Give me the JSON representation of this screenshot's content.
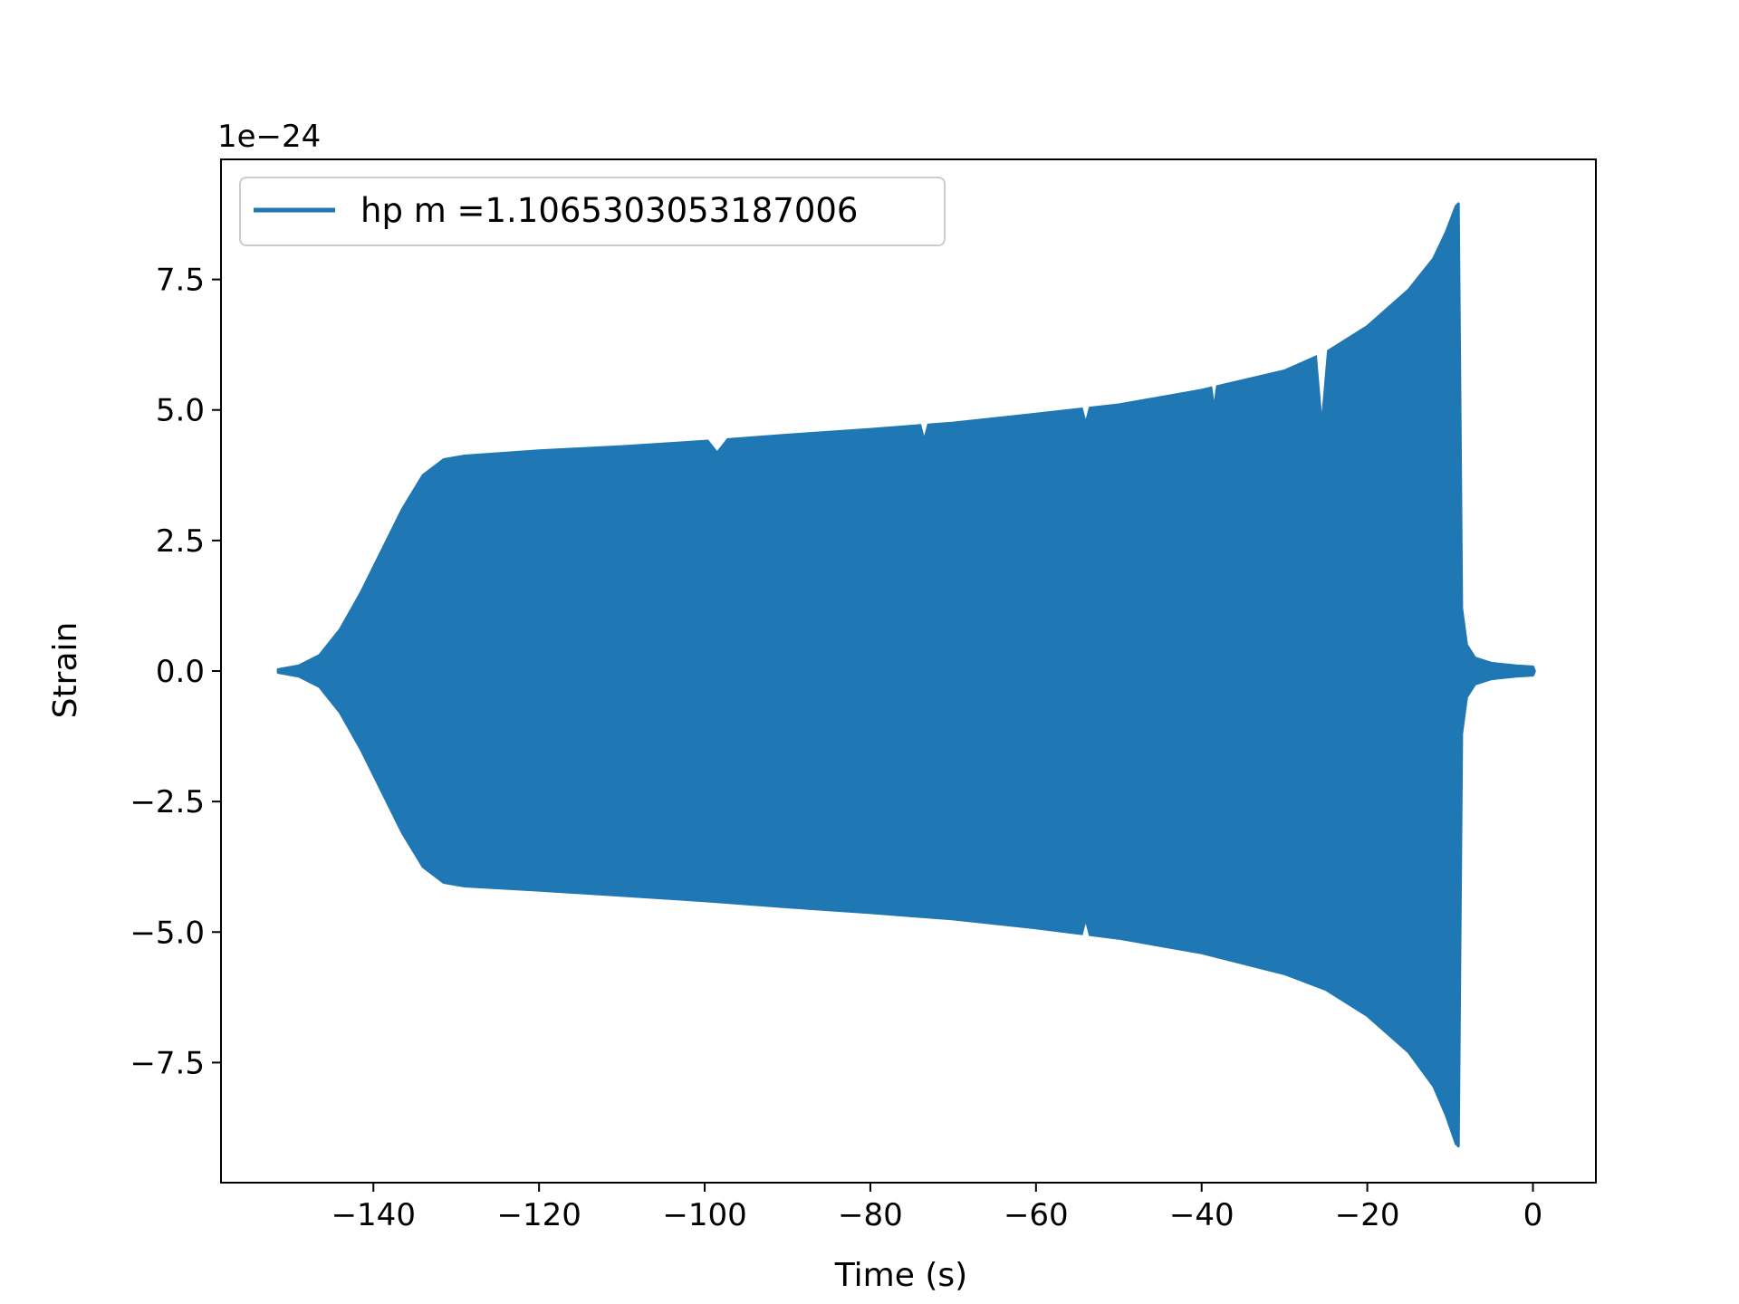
{
  "chart_data": {
    "type": "line",
    "title": "",
    "xlabel": "Time (s)",
    "ylabel": "Strain",
    "y_offset_label": "1e−24",
    "xlim": [
      -158.4,
      7.6
    ],
    "ylim": [
      -9.8,
      9.8
    ],
    "xticks": [
      {
        "value": -140,
        "label": "−140"
      },
      {
        "value": -120,
        "label": "−120"
      },
      {
        "value": -100,
        "label": "−100"
      },
      {
        "value": -80,
        "label": "−80"
      },
      {
        "value": -60,
        "label": "−60"
      },
      {
        "value": -40,
        "label": "−40"
      },
      {
        "value": -20,
        "label": "−20"
      },
      {
        "value": 0,
        "label": "0"
      }
    ],
    "yticks": [
      {
        "value": 7.5,
        "label": "7.5"
      },
      {
        "value": 5.0,
        "label": "5.0"
      },
      {
        "value": 2.5,
        "label": "2.5"
      },
      {
        "value": 0.0,
        "label": "0.0"
      },
      {
        "value": -2.5,
        "label": "−2.5"
      },
      {
        "value": -5.0,
        "label": "−5.0"
      },
      {
        "value": -7.5,
        "label": "−7.5"
      }
    ],
    "grid": false,
    "legend_position": "upper-left",
    "series": [
      {
        "name": "hp m =1.1065303053187006",
        "color": "#1f77b4",
        "envelope_upper": [
          [
            -151.5,
            0.03
          ],
          [
            -149,
            0.1
          ],
          [
            -146.5,
            0.3
          ],
          [
            -144,
            0.8
          ],
          [
            -141.5,
            1.5
          ],
          [
            -139,
            2.3
          ],
          [
            -136.5,
            3.1
          ],
          [
            -134,
            3.75
          ],
          [
            -131.5,
            4.05
          ],
          [
            -129,
            4.12
          ],
          [
            -120,
            4.22
          ],
          [
            -110,
            4.3
          ],
          [
            -100,
            4.4
          ],
          [
            -90,
            4.52
          ],
          [
            -80,
            4.63
          ],
          [
            -70,
            4.75
          ],
          [
            -60,
            4.92
          ],
          [
            -50,
            5.1
          ],
          [
            -40,
            5.38
          ],
          [
            -30,
            5.75
          ],
          [
            -25,
            6.1
          ],
          [
            -20,
            6.6
          ],
          [
            -15,
            7.3
          ],
          [
            -12,
            7.9
          ],
          [
            -10.5,
            8.4
          ],
          [
            -9.3,
            8.9
          ],
          [
            -9,
            8.95
          ],
          [
            -8.6,
            1.2
          ],
          [
            -8.0,
            0.5
          ],
          [
            -7,
            0.25
          ],
          [
            -5,
            0.15
          ],
          [
            -2,
            0.1
          ],
          [
            0,
            0.08
          ],
          [
            0.2,
            0.0
          ]
        ],
        "envelope_lower": [
          [
            -151.5,
            -0.03
          ],
          [
            -149,
            -0.1
          ],
          [
            -146.5,
            -0.3
          ],
          [
            -144,
            -0.8
          ],
          [
            -141.5,
            -1.5
          ],
          [
            -139,
            -2.3
          ],
          [
            -136.5,
            -3.1
          ],
          [
            -134,
            -3.75
          ],
          [
            -131.5,
            -4.05
          ],
          [
            -129,
            -4.12
          ],
          [
            -120,
            -4.2
          ],
          [
            -110,
            -4.3
          ],
          [
            -100,
            -4.4
          ],
          [
            -90,
            -4.52
          ],
          [
            -80,
            -4.63
          ],
          [
            -70,
            -4.75
          ],
          [
            -60,
            -4.92
          ],
          [
            -50,
            -5.12
          ],
          [
            -40,
            -5.4
          ],
          [
            -30,
            -5.8
          ],
          [
            -25,
            -6.1
          ],
          [
            -20,
            -6.6
          ],
          [
            -15,
            -7.3
          ],
          [
            -12,
            -7.95
          ],
          [
            -10.5,
            -8.5
          ],
          [
            -9.3,
            -9.05
          ],
          [
            -9,
            -9.1
          ],
          [
            -8.6,
            -1.2
          ],
          [
            -8.0,
            -0.5
          ],
          [
            -7,
            -0.25
          ],
          [
            -5,
            -0.15
          ],
          [
            -2,
            -0.1
          ],
          [
            0,
            -0.08
          ],
          [
            0.2,
            0.0
          ]
        ],
        "notches": [
          {
            "x": -98.5,
            "width": 3.0,
            "upper_depth": 0.2,
            "lower_depth": -0.5
          },
          {
            "x": -73.5,
            "width": 1.0,
            "upper_depth": 0.2,
            "lower_depth": 0.0
          },
          {
            "x": -54,
            "width": 1.0,
            "upper_depth": 0.2,
            "lower_depth": 0.2
          },
          {
            "x": -38.5,
            "width": 0.6,
            "upper_depth": 0.25,
            "lower_depth": 0.0
          },
          {
            "x": -25.5,
            "width": 1.3,
            "upper_depth": 1.1,
            "lower_depth": 0.0
          }
        ]
      }
    ]
  }
}
